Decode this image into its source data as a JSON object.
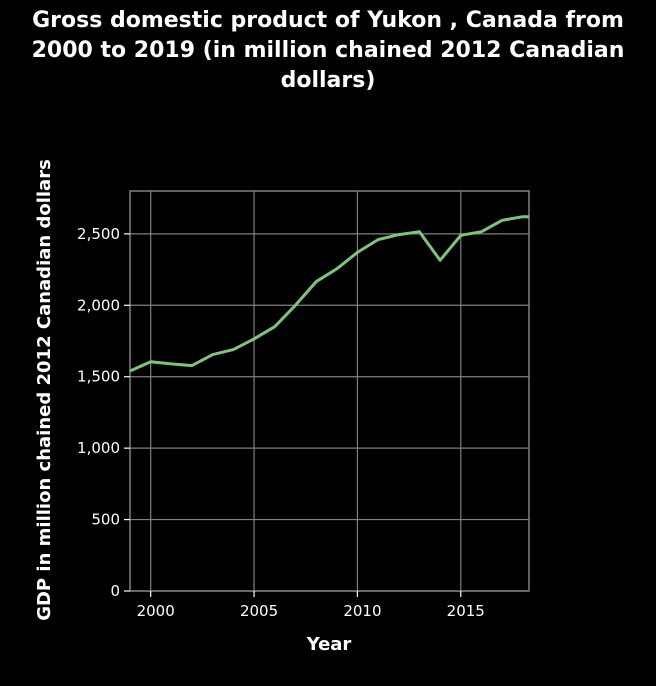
{
  "chart_data": {
    "type": "line",
    "title": "Gross domestic product of Yukon , Canada from 2000 to 2019 (in million chained 2012 Canadian dollars)",
    "xlabel": "Year",
    "ylabel": "GDP in million chained 2012 Canadian dollars",
    "x": [
      1999,
      2000,
      2001,
      2002,
      2003,
      2004,
      2005,
      2006,
      2007,
      2008,
      2009,
      2010,
      2011,
      2012,
      2013,
      2014,
      2015,
      2016,
      2017,
      2018,
      2019
    ],
    "series": [
      {
        "values": [
          1540,
          1605,
          1590,
          1578,
          1655,
          1690,
          1765,
          1850,
          2000,
          2165,
          2255,
          2370,
          2460,
          2495,
          2515,
          2315,
          2490,
          2515,
          2595,
          2620,
          2620
        ]
      }
    ],
    "xlim": [
      1999,
      2018.3
    ],
    "ylim": [
      0,
      2800
    ],
    "xticks": [
      "2000",
      "2005",
      "2010",
      "2015"
    ],
    "yticks": [
      "0",
      "500",
      "1,000",
      "1,500",
      "2,000",
      "2,500"
    ],
    "grid": true,
    "colors": {
      "background": "#000000",
      "line": "#7dc57d",
      "grid": "#808080",
      "text": "#ffffff"
    }
  }
}
